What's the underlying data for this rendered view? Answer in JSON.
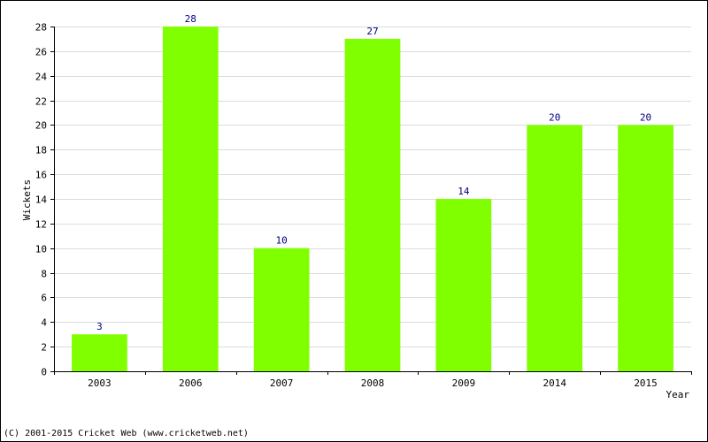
{
  "chart_data": {
    "type": "bar",
    "categories": [
      "2003",
      "2006",
      "2007",
      "2008",
      "2009",
      "2014",
      "2015"
    ],
    "values": [
      3,
      28,
      10,
      27,
      14,
      20,
      20
    ],
    "xlabel": "Year",
    "ylabel": "Wickets",
    "ylim": [
      0,
      28
    ],
    "yticks": [
      0,
      2,
      4,
      6,
      8,
      10,
      12,
      14,
      16,
      18,
      20,
      22,
      24,
      26,
      28
    ],
    "grid": true,
    "bar_color": "#80ff00",
    "value_label_color": "#000080"
  },
  "footer": {
    "copyright": "(C) 2001-2015 Cricket Web (www.cricketweb.net)"
  }
}
